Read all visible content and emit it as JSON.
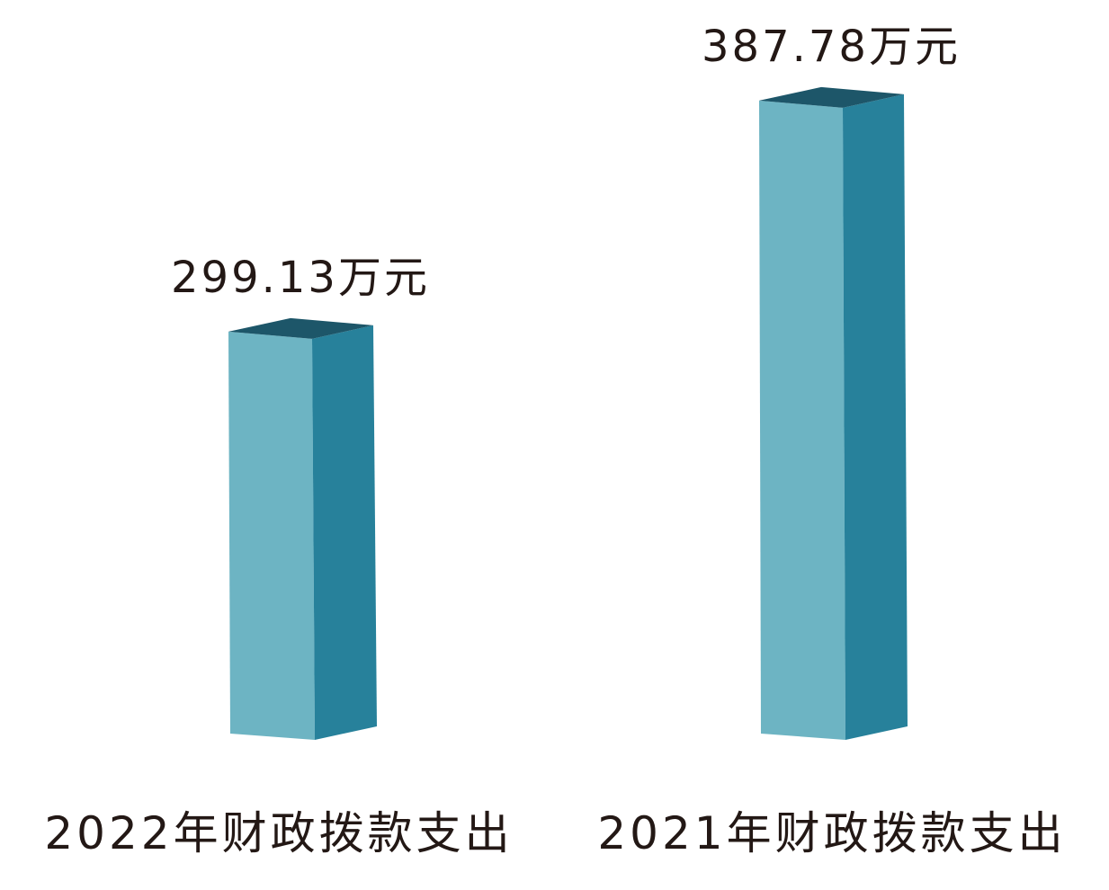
{
  "chart_data": {
    "type": "bar",
    "style": "3d-column",
    "categories": [
      "2022年财政拨款支出",
      "2021年财政拨款支出"
    ],
    "values": [
      299.13,
      387.78
    ],
    "data_labels": [
      "299.13万元",
      "387.78万元"
    ],
    "unit": "万元",
    "title": "",
    "xlabel": "",
    "ylabel": "",
    "grid": false,
    "legend": "none",
    "colors": {
      "front": "#6db4c3",
      "side": "#27819b",
      "top": "#1d5669",
      "text": "#231815"
    }
  }
}
